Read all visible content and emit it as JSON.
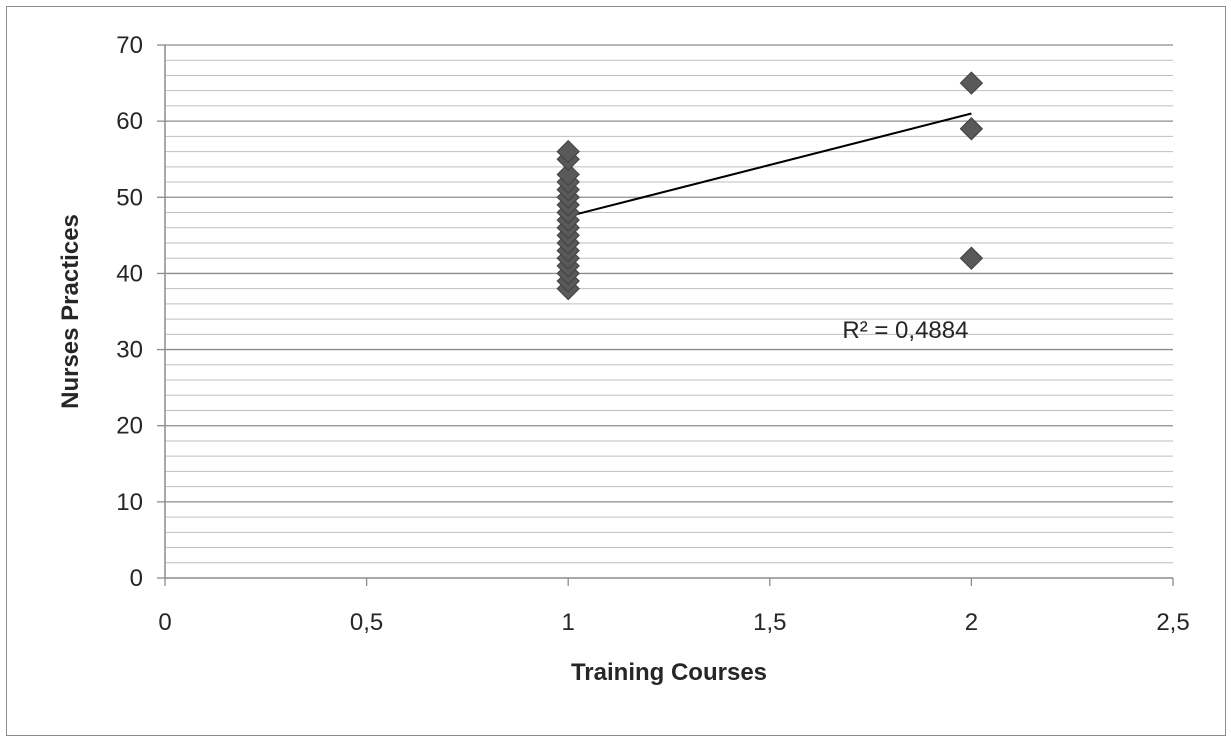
{
  "chart_data": {
    "type": "scatter",
    "title": "",
    "xlabel": "Training Courses",
    "ylabel": "Nurses Practices",
    "xlim": [
      0,
      2.5
    ],
    "ylim": [
      0,
      70
    ],
    "xticks": [
      "0",
      "0,5",
      "1",
      "1,5",
      "2",
      "2,5"
    ],
    "xtick_values": [
      0,
      0.5,
      1,
      1.5,
      2,
      2.5
    ],
    "yticks": [
      "0",
      "10",
      "20",
      "30",
      "40",
      "50",
      "60",
      "70"
    ],
    "ytick_values": [
      0,
      10,
      20,
      30,
      40,
      50,
      60,
      70
    ],
    "grid": {
      "major": true,
      "minor": true,
      "minor_step": 2
    },
    "series": [
      {
        "marker": "diamond",
        "color": "#595959",
        "points": [
          [
            1,
            38
          ],
          [
            1,
            39
          ],
          [
            1,
            40
          ],
          [
            1,
            41
          ],
          [
            1,
            42
          ],
          [
            1,
            43
          ],
          [
            1,
            44
          ],
          [
            1,
            45
          ],
          [
            1,
            46
          ],
          [
            1,
            47
          ],
          [
            1,
            48
          ],
          [
            1,
            49
          ],
          [
            1,
            50
          ],
          [
            1,
            51
          ],
          [
            1,
            52
          ],
          [
            1,
            53
          ],
          [
            1,
            55
          ],
          [
            1,
            56
          ],
          [
            2,
            65
          ],
          [
            2,
            59
          ],
          [
            2,
            42
          ]
        ]
      }
    ],
    "trendline": {
      "type": "linear",
      "from": [
        1,
        47.5
      ],
      "to": [
        2,
        61
      ],
      "color": "#000000"
    },
    "annotation": {
      "text": "R² = 0,4884",
      "at": [
        1.68,
        31.5
      ]
    }
  }
}
